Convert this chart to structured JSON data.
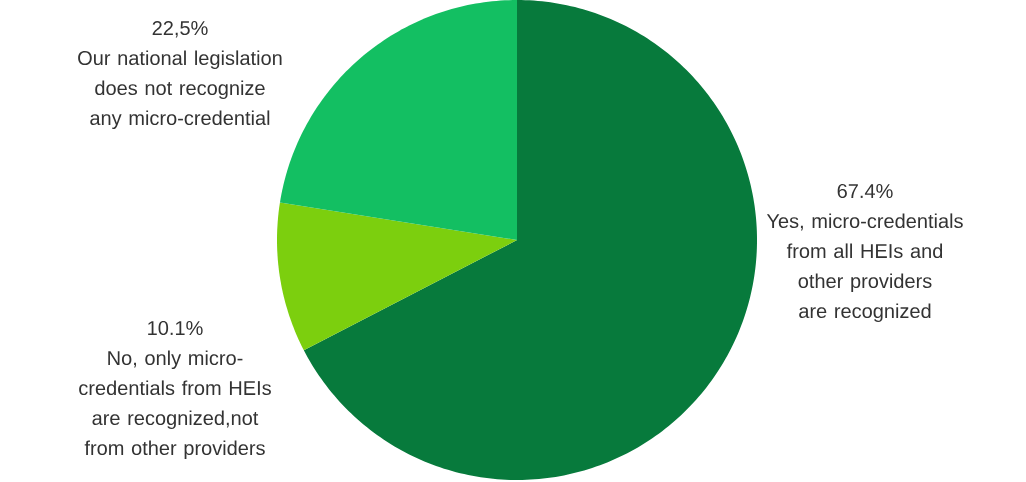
{
  "chart_data": {
    "type": "pie",
    "categories": [
      "Yes, micro-credentials from all HEIs and other providers are recognized",
      "No, only micro-credentials from HEIs are recognized,not from other providers",
      "Our national legislation does not recognize any micro-credential"
    ],
    "values": [
      67.4,
      10.1,
      22.5
    ],
    "colors": [
      "#077a3c",
      "#7ccf0e",
      "#13bf62"
    ],
    "value_labels": [
      "67.4%",
      "10.1%",
      "22,5%"
    ]
  }
}
